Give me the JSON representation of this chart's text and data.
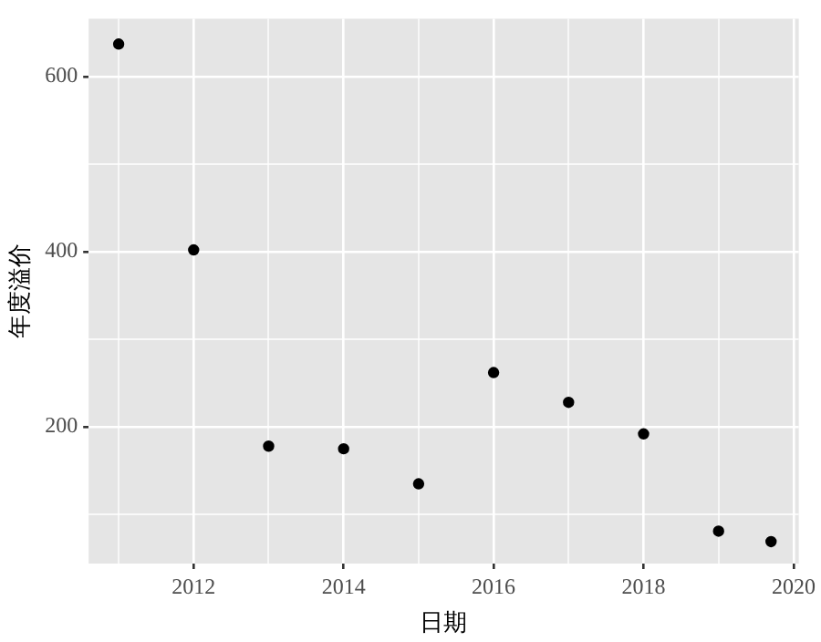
{
  "chart_data": {
    "type": "scatter",
    "xlabel": "日期",
    "ylabel": "年度溢价",
    "x": [
      2011,
      2012,
      2013,
      2014,
      2015,
      2016,
      2017,
      2018,
      2019,
      2019.7
    ],
    "values": [
      637,
      402,
      178,
      175,
      135,
      262,
      228,
      192,
      81,
      69
    ],
    "color": "#000000",
    "marker": "circle",
    "xlim": [
      2010.6,
      2020.07
    ],
    "ylim": [
      44,
      666
    ],
    "xticks": [
      {
        "value": 2011,
        "label": null
      },
      2012,
      {
        "value": 2013,
        "label": null
      },
      2014,
      {
        "value": 2015,
        "label": null
      },
      2016,
      {
        "value": 2017,
        "label": null
      },
      2018,
      {
        "value": 2019,
        "label": null
      },
      2020
    ],
    "yticks": [
      {
        "value": 100,
        "label": null
      },
      200,
      {
        "value": 300,
        "label": null
      },
      400,
      {
        "value": 500,
        "label": null
      },
      600
    ],
    "grid": true,
    "legend": false
  }
}
